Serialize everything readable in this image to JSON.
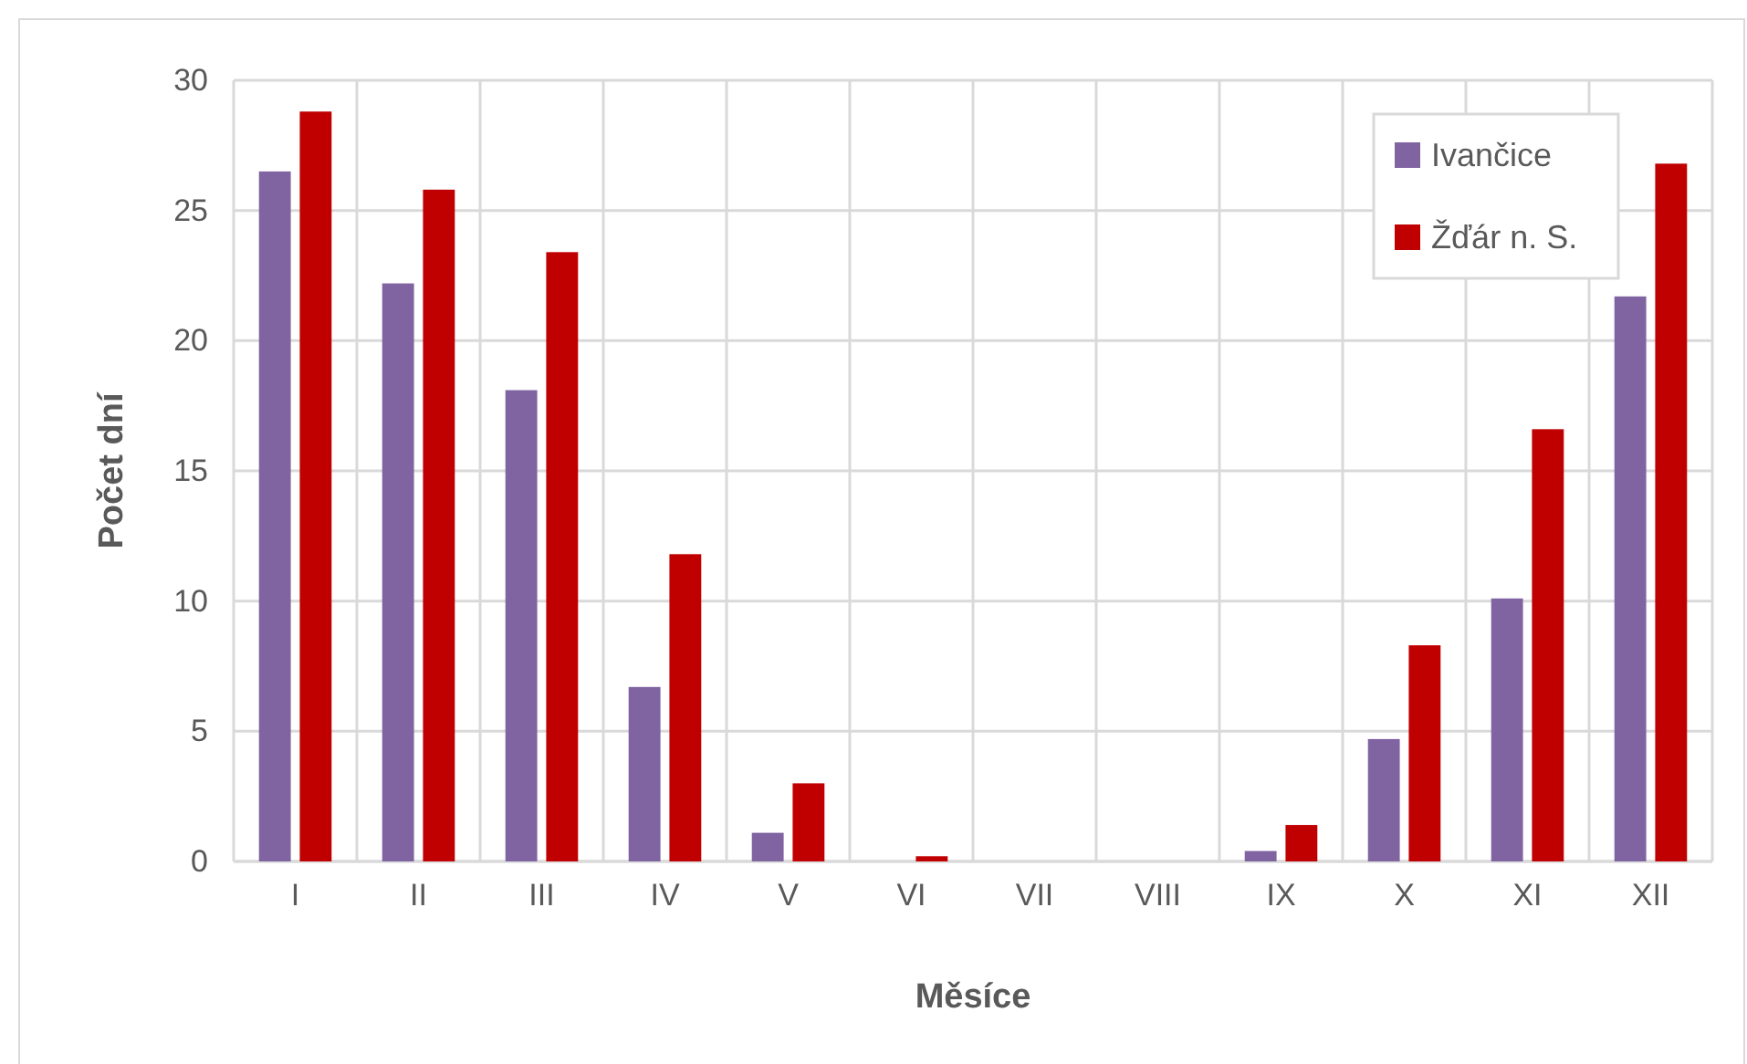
{
  "chart_data": {
    "type": "bar",
    "xlabel": "Měsíce",
    "ylabel": "Počet dní",
    "categories": [
      "I",
      "II",
      "III",
      "IV",
      "V",
      "VI",
      "VII",
      "VIII",
      "IX",
      "X",
      "XI",
      "XII"
    ],
    "series": [
      {
        "name": "Ivančice",
        "color": "#8064a2",
        "values": [
          26.5,
          22.2,
          18.1,
          6.7,
          1.1,
          0,
          0,
          0,
          0.4,
          4.7,
          10.1,
          21.7
        ]
      },
      {
        "name": "Žďár n. S.",
        "color": "#c00000",
        "values": [
          28.8,
          25.8,
          23.4,
          11.8,
          3.0,
          0.2,
          0,
          0,
          1.4,
          8.3,
          16.6,
          26.8
        ]
      }
    ],
    "ylim": [
      0,
      30
    ],
    "yticks": [
      0,
      5,
      10,
      15,
      20,
      25,
      30
    ],
    "grid": true,
    "legend": "top right"
  }
}
